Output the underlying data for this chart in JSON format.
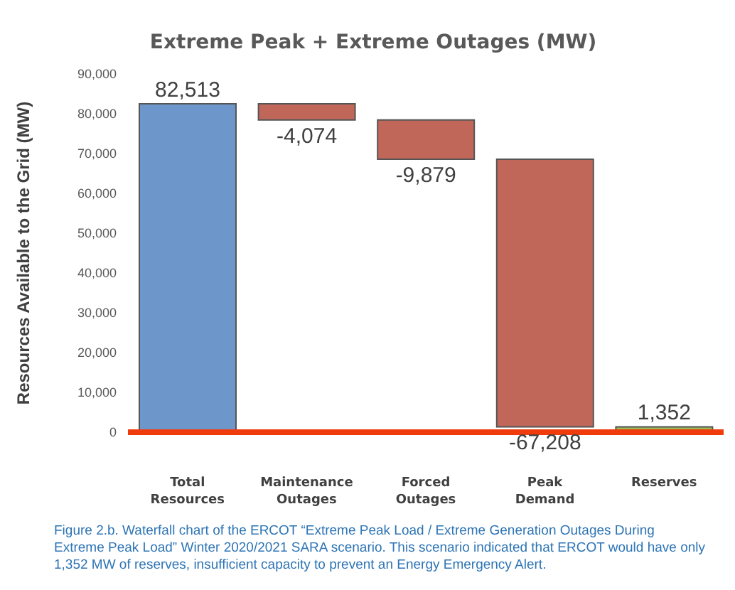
{
  "chart_data": {
    "type": "bar",
    "title": "Extreme Peak + Extreme Outages (MW)",
    "ylabel": "Resources Available to the Grid (MW)",
    "categories": [
      "Total Resources",
      "Maintenance Outages",
      "Forced Outages",
      "Peak Demand",
      "Reserves"
    ],
    "values": [
      82513,
      -4074,
      -9879,
      -67208,
      1352
    ],
    "base": [
      0,
      82513,
      78439,
      68560,
      0
    ],
    "colors": [
      "#6d97cb",
      "#c0675a",
      "#c0675a",
      "#c0675a",
      "#9bbb59"
    ],
    "value_labels": [
      "82,513",
      "-4,074",
      "-9,879",
      "-67,208",
      "1,352"
    ],
    "ylim": [
      0,
      90000
    ],
    "yticks": [
      0,
      {
        "value": 10000,
        "label": "10,000"
      },
      {
        "value": 20000,
        "label": "20,000"
      },
      {
        "value": 30000,
        "label": "30,000"
      },
      {
        "value": 40000,
        "label": "40,000"
      },
      {
        "value": 50000,
        "label": "50,000"
      },
      {
        "value": 60000,
        "label": "60,000"
      },
      {
        "value": 70000,
        "label": "70,000"
      },
      {
        "value": 80000,
        "label": "80,000"
      },
      {
        "value": 90000,
        "label": "90,000"
      }
    ],
    "grid": false,
    "ref_lines": [
      {
        "axis": "y",
        "value": 0,
        "color": "#f03c0c"
      }
    ],
    "annotations": [
      "Figure 2.b. Waterfall chart of the ERCOT “Extreme Peak Load / Extreme Generation Outages During Extreme Peak Load” Winter 2020/2021 SARA scenario.  This scenario indicated that ERCOT would have only 1,352 MW of reserves, insufficient capacity to prevent an Energy Emergency Alert."
    ]
  }
}
